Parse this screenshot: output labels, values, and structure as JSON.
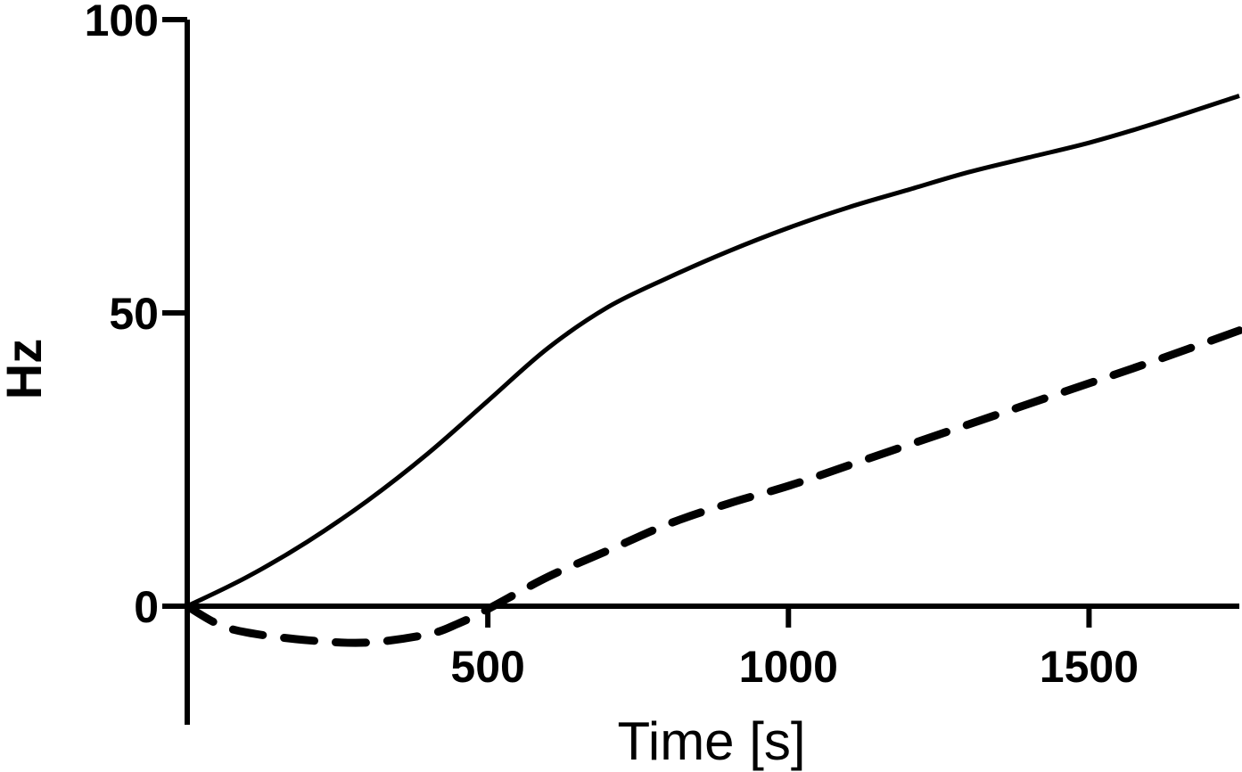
{
  "chart_data": {
    "type": "line",
    "title": "",
    "xlabel": "Time [s]",
    "ylabel": "Hz",
    "xlim": [
      0,
      1750
    ],
    "ylim": [
      -20,
      100
    ],
    "x_ticks": [
      500,
      1000,
      1500
    ],
    "y_ticks": [
      0,
      50,
      100
    ],
    "grid": false,
    "legend": "none",
    "series": [
      {
        "style": "solid",
        "color": "#000000",
        "x": [
          0,
          100,
          200,
          300,
          400,
          500,
          600,
          700,
          800,
          900,
          1000,
          1100,
          1200,
          1300,
          1400,
          1500,
          1600,
          1750
        ],
        "y": [
          0,
          5,
          11,
          18,
          26,
          35,
          44,
          51,
          56,
          60.5,
          64.5,
          68,
          71,
          74,
          76.5,
          79,
          82,
          87
        ]
      },
      {
        "style": "dashed",
        "color": "#000000",
        "x": [
          0,
          50,
          100,
          200,
          300,
          400,
          450,
          500,
          600,
          700,
          800,
          900,
          1000,
          1100,
          1200,
          1300,
          1400,
          1500,
          1600,
          1750
        ],
        "y": [
          0,
          -3,
          -4.5,
          -5.8,
          -6.2,
          -4.8,
          -3,
          -0.5,
          5,
          9.5,
          14,
          17.5,
          20.5,
          24,
          27.5,
          31,
          34.5,
          38,
          41.5,
          47
        ]
      }
    ]
  }
}
